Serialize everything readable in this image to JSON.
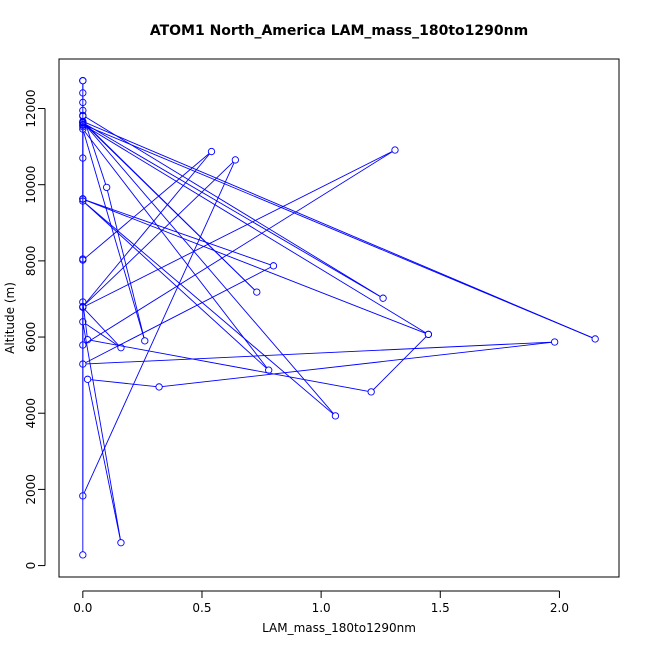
{
  "chart_data": {
    "type": "line",
    "title": "ATOM1 North_America LAM_mass_180to1290nm",
    "xlabel": "LAM_mass_180to1290nm",
    "ylabel": "Altitude (m)",
    "xlim": [
      -0.1,
      2.25
    ],
    "ylim": [
      -300,
      13300
    ],
    "x_ticks": [
      0.0,
      0.5,
      1.0,
      1.5,
      2.0
    ],
    "x_tick_labels": [
      "0.0",
      "0.5",
      "1.0",
      "1.5",
      "2.0"
    ],
    "y_ticks": [
      0,
      2000,
      4000,
      6000,
      8000,
      10000,
      12000
    ],
    "y_tick_labels": [
      "0",
      "2000",
      "4000",
      "6000",
      "8000",
      "10000",
      "12000"
    ],
    "grid": false,
    "colors": {
      "series": "#0000ff",
      "axis": "#000000"
    },
    "series": [
      {
        "x": [
          0.0,
          0.0,
          0.0,
          0.0,
          0.0,
          0.0,
          0.0,
          0.0,
          0.0,
          0.0,
          0.0,
          0.0,
          0.0,
          0.0,
          0.54,
          0.0,
          0.64,
          0.0,
          0.0,
          1.26,
          0.0,
          0.1,
          0.26,
          0.0,
          0.78,
          0.0,
          1.06,
          0.0,
          0.73,
          0.0,
          2.15,
          0.0,
          1.45,
          0.0,
          0.8,
          0.0,
          1.98,
          0.32,
          0.02,
          0.16,
          0.0,
          0.16,
          0.0,
          1.31,
          0.0,
          0.0,
          0.02,
          1.21,
          1.45
        ],
        "y": [
          280,
          12730,
          12730,
          12410,
          12160,
          11950,
          11800,
          11620,
          11560,
          11520,
          10700,
          9630,
          8050,
          8020,
          10870,
          6800,
          10650,
          1830,
          11630,
          7020,
          11820,
          9930,
          5900,
          11460,
          5130,
          9570,
          3930,
          11640,
          7180,
          11660,
          5950,
          11580,
          6070,
          9620,
          7870,
          5290,
          5870,
          4690,
          4890,
          600,
          6400,
          5720,
          6780,
          10910,
          5790,
          6920,
          5930,
          4560,
          6070
        ]
      }
    ]
  }
}
